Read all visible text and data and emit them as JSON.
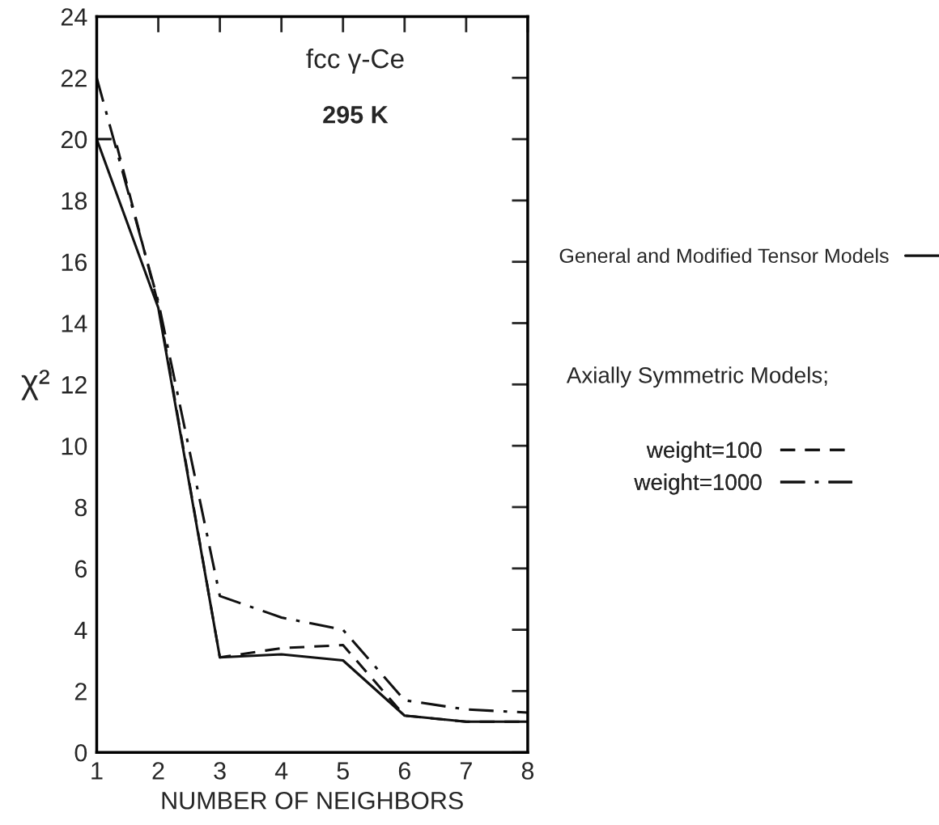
{
  "chart_data": {
    "type": "line",
    "title": "fcc γ-Ce",
    "subtitle": "295 K",
    "xlabel": "NUMBER OF NEIGHBORS",
    "ylabel": "χ²",
    "x": [
      1,
      2,
      3,
      4,
      5,
      6,
      7,
      8
    ],
    "series": [
      {
        "name": "General and Modified Tensor Models",
        "color": "#111111",
        "line_style": "solid",
        "values": [
          20,
          14.5,
          3.1,
          3.2,
          3.0,
          1.2,
          1.0,
          1.0
        ]
      },
      {
        "name": "weight=100",
        "color": "#111111",
        "line_style": "dashed",
        "x": [
          1,
          1.3,
          2,
          3,
          4,
          5,
          6,
          7,
          8
        ],
        "values": [
          20,
          20,
          14.6,
          3.1,
          3.4,
          3.5,
          1.2,
          1.0,
          1.0
        ]
      },
      {
        "name": "weight=1000",
        "color": "#111111",
        "line_style": "dashdot",
        "values": [
          22,
          14.7,
          5.1,
          4.4,
          4.0,
          1.7,
          1.4,
          1.3
        ]
      }
    ],
    "annotations": [
      "Axially Symmetric Models;"
    ],
    "xlim": [
      1,
      8
    ],
    "xticks": [
      1,
      2,
      3,
      4,
      5,
      6,
      7,
      8
    ],
    "ylim": [
      0,
      24
    ],
    "yticks": [
      0,
      2,
      4,
      6,
      8,
      10,
      12,
      14,
      16,
      18,
      20,
      22,
      24
    ],
    "grid": false,
    "legend": "right",
    "marker": "none"
  }
}
